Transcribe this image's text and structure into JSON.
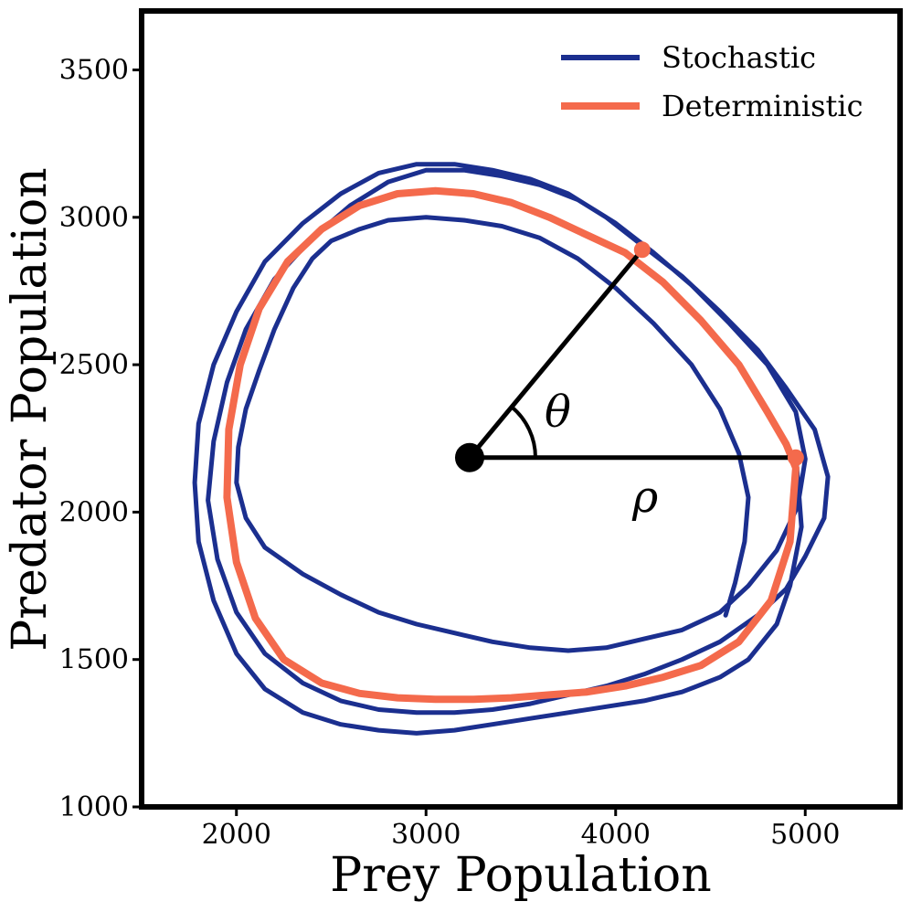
{
  "chart_data": {
    "type": "line",
    "title": "",
    "xlabel": "Prey Population",
    "ylabel": "Predator Population",
    "xlim": [
      1500,
      5500
    ],
    "ylim": [
      1000,
      3700
    ],
    "xticks": [
      2000,
      3000,
      4000,
      5000
    ],
    "yticks": [
      1000,
      1500,
      2000,
      2500,
      3000,
      3500
    ],
    "xtick_labels": [
      "2000",
      "3000",
      "4000",
      "5000"
    ],
    "ytick_labels": [
      "1000",
      "1500",
      "2000",
      "2500",
      "3000",
      "3500"
    ],
    "grid": false,
    "legend_position": "top-right",
    "colors": {
      "stochastic": "#1b2f8f",
      "deterministic": "#f46a4c",
      "annotation": "#000000"
    },
    "series": [
      {
        "name": "Stochastic",
        "note": "noisy trajectory looping around the fixed point; sampled approx. path",
        "x": [
          4950,
          4980,
          4920,
          4850,
          4700,
          4550,
          4350,
          4150,
          3950,
          3750,
          3550,
          3350,
          3150,
          2950,
          2750,
          2550,
          2350,
          2150,
          2000,
          1880,
          1800,
          1780,
          1800,
          1880,
          2000,
          2150,
          2350,
          2550,
          2750,
          2950,
          3150,
          3350,
          3550,
          3750,
          3950,
          4150,
          4350,
          4550,
          4750,
          4900,
          5050,
          5120,
          5100,
          5000,
          4900,
          4750,
          4550,
          4350,
          4150,
          3950,
          3750,
          3550,
          3350,
          3150,
          2950,
          2750,
          2550,
          2350,
          2150,
          2000,
          1900,
          1850,
          1880,
          1950,
          2050,
          2200,
          2400,
          2600,
          2800,
          3000,
          3200,
          3400,
          3600,
          3800,
          4000,
          4200,
          4400,
          4600,
          4800,
          4950,
          5000,
          4960,
          4850,
          4700,
          4550,
          4350,
          4150,
          3950,
          3750,
          3550,
          3350,
          3150,
          2950,
          2750,
          2550,
          2350,
          2150,
          2050,
          2000,
          2010,
          2050,
          2120,
          2200,
          2300,
          2400,
          2500,
          2650,
          2800,
          3000,
          3200,
          3400,
          3600,
          3800,
          4000,
          4200,
          4400,
          4550,
          4650,
          4700,
          4680,
          4630,
          4580
        ],
        "y": [
          2200,
          1950,
          1750,
          1620,
          1500,
          1440,
          1390,
          1360,
          1340,
          1320,
          1300,
          1280,
          1260,
          1250,
          1260,
          1280,
          1320,
          1400,
          1520,
          1700,
          1900,
          2100,
          2300,
          2500,
          2680,
          2850,
          2980,
          3080,
          3150,
          3180,
          3180,
          3160,
          3130,
          3080,
          3000,
          2900,
          2800,
          2680,
          2550,
          2420,
          2280,
          2120,
          1980,
          1850,
          1740,
          1650,
          1560,
          1500,
          1450,
          1410,
          1380,
          1350,
          1330,
          1320,
          1320,
          1330,
          1360,
          1420,
          1520,
          1660,
          1840,
          2040,
          2240,
          2440,
          2620,
          2790,
          2930,
          3040,
          3120,
          3160,
          3160,
          3140,
          3110,
          3060,
          2980,
          2880,
          2770,
          2640,
          2500,
          2340,
          2180,
          2020,
          1870,
          1750,
          1660,
          1600,
          1570,
          1540,
          1530,
          1540,
          1560,
          1590,
          1620,
          1660,
          1720,
          1790,
          1880,
          1980,
          2100,
          2220,
          2350,
          2480,
          2620,
          2760,
          2860,
          2920,
          2960,
          2990,
          3000,
          2990,
          2970,
          2930,
          2860,
          2760,
          2640,
          2500,
          2350,
          2200,
          2050,
          1900,
          1760,
          1650
        ]
      },
      {
        "name": "Deterministic",
        "note": "closed limit-cycle orbit; sampled approx. path",
        "x": [
          4950,
          4920,
          4820,
          4650,
          4450,
          4250,
          4050,
          3850,
          3650,
          3450,
          3250,
          3050,
          2850,
          2650,
          2450,
          2250,
          2100,
          2000,
          1950,
          1960,
          2020,
          2120,
          2270,
          2450,
          2650,
          2850,
          3050,
          3250,
          3450,
          3650,
          3850,
          4050,
          4250,
          4450,
          4650,
          4800,
          4900,
          4950
        ],
        "y": [
          2150,
          1900,
          1700,
          1560,
          1480,
          1440,
          1410,
          1390,
          1380,
          1370,
          1365,
          1365,
          1370,
          1385,
          1420,
          1500,
          1640,
          1830,
          2050,
          2280,
          2500,
          2690,
          2850,
          2960,
          3040,
          3080,
          3090,
          3080,
          3050,
          3000,
          2940,
          2880,
          2780,
          2650,
          2500,
          2340,
          2230,
          2150
        ]
      }
    ],
    "annotations": {
      "center": {
        "x": 3230,
        "y": 2185
      },
      "radius_endpoint": {
        "x": 4950,
        "y": 2185
      },
      "angle_endpoint": {
        "x": 4140,
        "y": 2890
      },
      "theta_label": "θ",
      "rho_label": "ρ"
    }
  }
}
